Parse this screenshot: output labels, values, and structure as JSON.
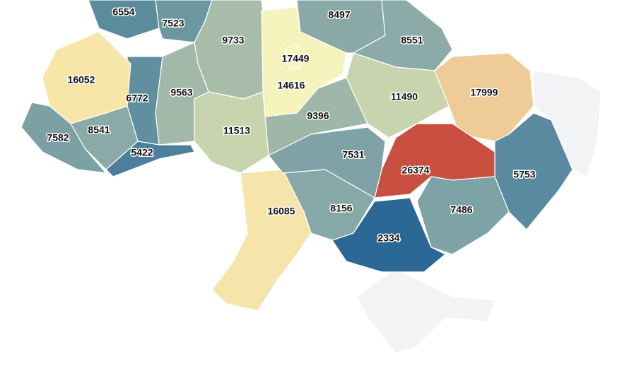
{
  "map": {
    "regions": [
      {
        "value": 6554,
        "color": "#5b8c9c"
      },
      {
        "value": 7523,
        "color": "#6b97a1"
      },
      {
        "value": 9733,
        "color": "#a7bda9"
      },
      {
        "value": 17449,
        "color": "#f8f6bf"
      },
      {
        "value": 14616,
        "color": "#f6f4bd"
      },
      {
        "value": 8497,
        "color": "#8aa9a6"
      },
      {
        "value": 8551,
        "color": "#8caaa7"
      },
      {
        "value": 11490,
        "color": "#c8d4ae"
      },
      {
        "value": 17999,
        "color": "#efcb98"
      },
      {
        "value": 5753,
        "color": "#5a8a9f"
      },
      {
        "value": 26374,
        "color": "#c95040"
      },
      {
        "value": 7486,
        "color": "#7ea3a6"
      },
      {
        "value": 2334,
        "color": "#2c6896"
      },
      {
        "value": 8156,
        "color": "#86a8a7"
      },
      {
        "value": 16085,
        "color": "#f6e5aa"
      },
      {
        "value": 7531,
        "color": "#7ea2a5"
      },
      {
        "value": 9396,
        "color": "#9fb7a9"
      },
      {
        "value": 11513,
        "color": "#c8d4ae"
      },
      {
        "value": 9563,
        "color": "#a2b9a9"
      },
      {
        "value": 6772,
        "color": "#60909f"
      },
      {
        "value": 16052,
        "color": "#f7e6a8"
      },
      {
        "value": 8541,
        "color": "#8aa9a7"
      },
      {
        "value": 7582,
        "color": "#7ca1a5"
      },
      {
        "value": 5422,
        "color": "#4b7f9b"
      }
    ]
  }
}
